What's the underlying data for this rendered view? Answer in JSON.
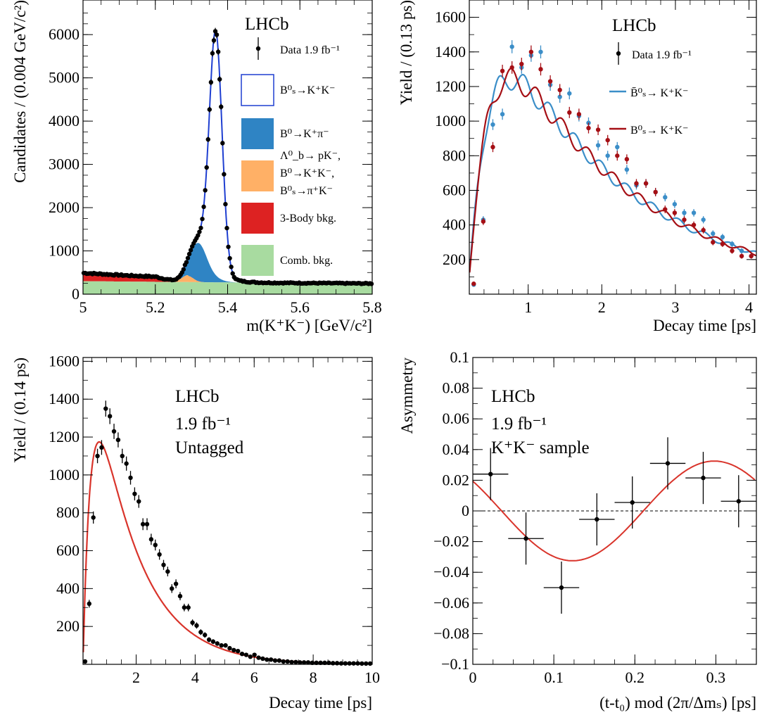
{
  "chart_data": [
    {
      "type": "histogram-fit",
      "id": "mass",
      "xlabel": "m(K⁺K⁻) [GeV/c²]",
      "ylabel": "Candidates / (0.004 GeV/c²)",
      "xlim": [
        5.0,
        5.8
      ],
      "ylim": [
        0,
        6800
      ],
      "xticks": [
        "5",
        "5.2",
        "5.4",
        "5.6",
        "5.8"
      ],
      "yticks": [
        "0",
        "1000",
        "2000",
        "3000",
        "4000",
        "5000",
        "6000"
      ],
      "annotation": "LHCb",
      "legend": [
        {
          "label": "Data 1.9 fb⁻¹",
          "kind": "data"
        },
        {
          "label": "B⁰ₛ→K⁺K⁻",
          "kind": "box",
          "fill": "#ffffff",
          "stroke": "#1f3fd1"
        },
        {
          "label": "B⁰→K⁺π⁻",
          "kind": "box",
          "fill": "#2f84c4"
        },
        {
          "label": "Λ⁰_b→ pK⁻, B⁰→K⁺K⁻, B⁰ₛ→π⁺K⁻",
          "kind": "box",
          "fill": "#ffb066"
        },
        {
          "label": "3-Body bkg.",
          "kind": "box",
          "fill": "#dd2222"
        },
        {
          "label": "Comb. bkg.",
          "kind": "box",
          "fill": "#a8dba0"
        }
      ],
      "components": {
        "comb": {
          "color": "#a8dba0",
          "a": 300,
          "b": 0.25
        },
        "threebody": {
          "color": "#dd2222",
          "a": 190,
          "b": 0.35,
          "edge": 5.26
        },
        "partreco": {
          "color": "#ffb066",
          "mean": 5.29,
          "sigma": 0.015,
          "amp": 140
        },
        "bkpi": {
          "color": "#2f84c4",
          "mean": 5.318,
          "sigma": 0.022,
          "amp": 760
        },
        "signal": {
          "color": "#1f3fd1",
          "mean": 5.367,
          "sigma": 0.0175,
          "amp": 5560
        }
      },
      "data_points": {
        "x_from": 5.002,
        "x_to": 5.798,
        "step": 0.004,
        "marker": "#000000"
      }
    },
    {
      "type": "line",
      "id": "tagged",
      "xlabel": "Decay time [ps]",
      "ylabel": "Yield / (0.13 ps)",
      "xlim": [
        0.2,
        4.1
      ],
      "ylim": [
        0,
        1700
      ],
      "xticks": [
        "1",
        "2",
        "3",
        "4"
      ],
      "yticks": [
        "200",
        "400",
        "600",
        "800",
        "1000",
        "1200",
        "1400",
        "1600"
      ],
      "annotation": "LHCb",
      "legend": [
        {
          "label": "Data 1.9 fb⁻¹",
          "kind": "data",
          "color": "#000000"
        },
        {
          "label": "B̄⁰ₛ→ K⁺K⁻",
          "kind": "line",
          "color": "#3b8ec8"
        },
        {
          "label": "B⁰ₛ→ K⁺K⁻",
          "kind": "line",
          "color": "#a50f15"
        }
      ],
      "series": [
        {
          "name": "B̄⁰ₛ→ K⁺K⁻",
          "color": "#3b8ec8",
          "x": [
            0.26,
            0.39,
            0.52,
            0.65,
            0.78,
            0.91,
            1.04,
            1.17,
            1.3,
            1.43,
            1.56,
            1.69,
            1.82,
            1.95,
            2.08,
            2.21,
            2.34,
            2.47,
            2.6,
            2.73,
            2.86,
            2.99,
            3.12,
            3.25,
            3.38,
            3.51,
            3.64,
            3.77,
            3.9,
            4.03
          ],
          "y": [
            55,
            430,
            980,
            1040,
            1430,
            1310,
            1380,
            1400,
            1210,
            1140,
            1160,
            1030,
            990,
            860,
            800,
            850,
            720,
            630,
            640,
            590,
            560,
            520,
            470,
            470,
            430,
            350,
            330,
            290,
            250,
            220
          ]
        },
        {
          "name": "B⁰ₛ→ K⁺K⁻",
          "color": "#a50f15",
          "x": [
            0.26,
            0.39,
            0.52,
            0.65,
            0.78,
            0.91,
            1.04,
            1.17,
            1.3,
            1.43,
            1.56,
            1.69,
            1.82,
            1.95,
            2.08,
            2.21,
            2.34,
            2.47,
            2.6,
            2.73,
            2.86,
            2.99,
            3.12,
            3.25,
            3.38,
            3.51,
            3.64,
            3.77,
            3.9,
            4.03
          ],
          "y": [
            60,
            420,
            850,
            1290,
            1310,
            1330,
            1400,
            1300,
            1230,
            1180,
            1050,
            1040,
            960,
            950,
            890,
            800,
            780,
            640,
            640,
            590,
            490,
            470,
            430,
            400,
            370,
            300,
            290,
            250,
            220,
            220
          ]
        }
      ]
    },
    {
      "type": "line",
      "id": "untagged",
      "xlabel": "Decay time [ps]",
      "ylabel": "Yield / (0.14 ps)",
      "xlim": [
        0.2,
        10
      ],
      "ylim": [
        0,
        1620
      ],
      "xticks": [
        "2",
        "4",
        "6",
        "8",
        "10"
      ],
      "yticks": [
        "200",
        "400",
        "600",
        "800",
        "1000",
        "1200",
        "1400",
        "1600"
      ],
      "annotations": [
        "LHCb",
        "1.9 fb⁻¹",
        "Untagged"
      ],
      "series": [
        {
          "name": "Data",
          "color": "#000000",
          "x": [
            0.27,
            0.41,
            0.55,
            0.69,
            0.83,
            0.97,
            1.11,
            1.25,
            1.39,
            1.53,
            1.67,
            1.81,
            1.95,
            2.09,
            2.23,
            2.37,
            2.51,
            2.65,
            2.79,
            2.93,
            3.07,
            3.21,
            3.35,
            3.49,
            3.63,
            3.77,
            3.91,
            4.05,
            4.19,
            4.33,
            4.47,
            4.61,
            4.75,
            4.89,
            5.03,
            5.17,
            5.31,
            5.45,
            5.59,
            5.73,
            5.87,
            6.01,
            6.15,
            6.29,
            6.43,
            6.57,
            6.71,
            6.85,
            6.99,
            7.13,
            7.27,
            7.41,
            7.55,
            7.69,
            7.83,
            7.97,
            8.11,
            8.25,
            8.39,
            8.53,
            8.67,
            8.81,
            8.95,
            9.09,
            9.23,
            9.37,
            9.51,
            9.65,
            9.79,
            9.93
          ],
          "y": [
            15,
            320,
            775,
            1100,
            1145,
            1350,
            1310,
            1230,
            1185,
            1100,
            1060,
            985,
            900,
            860,
            740,
            740,
            660,
            630,
            580,
            525,
            490,
            400,
            425,
            360,
            300,
            300,
            220,
            205,
            170,
            155,
            130,
            120,
            110,
            100,
            100,
            85,
            75,
            70,
            55,
            50,
            40,
            50,
            35,
            30,
            25,
            25,
            20,
            20,
            15,
            15,
            12,
            12,
            10,
            10,
            10,
            8,
            8,
            8,
            8,
            8,
            6,
            6,
            5,
            5,
            5,
            5,
            5,
            4,
            4,
            4
          ]
        },
        {
          "name": "Fit",
          "color": "#d9342b"
        }
      ]
    },
    {
      "type": "scatter",
      "id": "asymmetry",
      "xlabel": "(t-t₀) mod (2π/Δmₛ) [ps]",
      "ylabel": "Asymmetry",
      "xlim": [
        0,
        0.35
      ],
      "ylim": [
        -0.1,
        0.1
      ],
      "xticks": [
        "0",
        "0.1",
        "0.2",
        "0.3"
      ],
      "yticks": [
        "−0.1",
        "−0.08",
        "−0.06",
        "−0.04",
        "−0.02",
        "0",
        "0.02",
        "0.04",
        "0.06",
        "0.08",
        "0.1"
      ],
      "annotations": [
        "LHCb",
        "1.9 fb⁻¹",
        "K⁺K⁻ sample"
      ],
      "points": {
        "x": [
          0.0219,
          0.0656,
          0.1094,
          0.1531,
          0.1969,
          0.2406,
          0.2844,
          0.3281
        ],
        "y": [
          0.024,
          -0.018,
          -0.05,
          -0.0055,
          0.0055,
          0.031,
          0.0215,
          0.0063
        ],
        "yerr": [
          0.017,
          0.017,
          0.017,
          0.017,
          0.017,
          0.017,
          0.017,
          0.017
        ],
        "xerr": 0.0219
      },
      "fit": {
        "amp": 0.0325,
        "period": 0.35,
        "phase": 0.0355,
        "color": "#d9342b"
      }
    }
  ]
}
